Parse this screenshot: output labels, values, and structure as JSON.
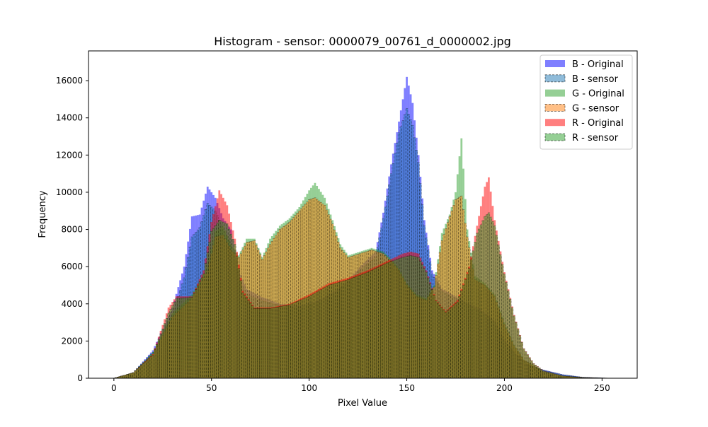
{
  "chart_data": {
    "type": "bar",
    "title": "Histogram - sensor: 0000079_00761_d_0000002.jpg",
    "xlabel": "Pixel Value",
    "ylabel": "Frequency",
    "xlim": [
      -13,
      268
    ],
    "ylim": [
      0,
      17600
    ],
    "xticks": [
      0,
      50,
      100,
      150,
      200,
      250
    ],
    "yticks": [
      0,
      2000,
      4000,
      6000,
      8000,
      10000,
      12000,
      14000,
      16000
    ],
    "grid": false,
    "legend_position": "top-right",
    "series": [
      {
        "name": "B - Original",
        "channel": "B",
        "variant": "original",
        "color": "#0000ff",
        "opacity": 0.5,
        "dashed": false,
        "peaks": [
          [
            0,
            0
          ],
          [
            10,
            300
          ],
          [
            20,
            1500
          ],
          [
            30,
            3800
          ],
          [
            36,
            6000
          ],
          [
            40,
            8700
          ],
          [
            44,
            8800
          ],
          [
            48,
            10300
          ],
          [
            52,
            9700
          ],
          [
            56,
            8600
          ],
          [
            60,
            8000
          ],
          [
            64,
            5800
          ],
          [
            68,
            4800
          ],
          [
            75,
            4400
          ],
          [
            85,
            4000
          ],
          [
            95,
            3900
          ],
          [
            105,
            4200
          ],
          [
            115,
            4800
          ],
          [
            122,
            5500
          ],
          [
            128,
            6200
          ],
          [
            134,
            6800
          ],
          [
            138,
            8900
          ],
          [
            142,
            11500
          ],
          [
            146,
            13800
          ],
          [
            150,
            16200
          ],
          [
            153,
            14800
          ],
          [
            156,
            12000
          ],
          [
            159,
            8500
          ],
          [
            163,
            5800
          ],
          [
            168,
            4800
          ],
          [
            175,
            4400
          ],
          [
            182,
            4000
          ],
          [
            188,
            3700
          ],
          [
            195,
            3100
          ],
          [
            200,
            2100
          ],
          [
            206,
            1300
          ],
          [
            212,
            750
          ],
          [
            220,
            450
          ],
          [
            230,
            200
          ],
          [
            240,
            60
          ],
          [
            255,
            0
          ]
        ]
      },
      {
        "name": "B - sensor",
        "channel": "B",
        "variant": "sensor",
        "color": "#1f77b4",
        "opacity": 0.5,
        "dashed": true,
        "peaks": [
          [
            0,
            0
          ],
          [
            10,
            300
          ],
          [
            20,
            1400
          ],
          [
            30,
            3400
          ],
          [
            36,
            5400
          ],
          [
            40,
            7600
          ],
          [
            44,
            8100
          ],
          [
            48,
            9400
          ],
          [
            52,
            9000
          ],
          [
            56,
            8000
          ],
          [
            60,
            7200
          ],
          [
            64,
            5400
          ],
          [
            68,
            4500
          ],
          [
            75,
            4200
          ],
          [
            85,
            3900
          ],
          [
            95,
            3800
          ],
          [
            105,
            4100
          ],
          [
            115,
            4700
          ],
          [
            122,
            5400
          ],
          [
            128,
            6000
          ],
          [
            134,
            6500
          ],
          [
            138,
            8600
          ],
          [
            142,
            11000
          ],
          [
            146,
            13200
          ],
          [
            150,
            14500
          ],
          [
            153,
            13600
          ],
          [
            156,
            11600
          ],
          [
            159,
            8200
          ],
          [
            163,
            5600
          ],
          [
            168,
            4700
          ],
          [
            175,
            4300
          ],
          [
            182,
            3900
          ],
          [
            188,
            3600
          ],
          [
            195,
            3000
          ],
          [
            200,
            2000
          ],
          [
            206,
            1250
          ],
          [
            212,
            720
          ],
          [
            220,
            430
          ],
          [
            230,
            190
          ],
          [
            240,
            55
          ],
          [
            255,
            0
          ]
        ]
      },
      {
        "name": "G - Original",
        "channel": "G",
        "variant": "original",
        "color": "#2ca02c",
        "opacity": 0.5,
        "dashed": false,
        "peaks": [
          [
            0,
            0
          ],
          [
            10,
            300
          ],
          [
            20,
            1400
          ],
          [
            30,
            3500
          ],
          [
            40,
            4500
          ],
          [
            48,
            6000
          ],
          [
            52,
            7900
          ],
          [
            56,
            8200
          ],
          [
            60,
            7200
          ],
          [
            64,
            6600
          ],
          [
            68,
            7500
          ],
          [
            72,
            7500
          ],
          [
            76,
            6500
          ],
          [
            80,
            7500
          ],
          [
            85,
            8200
          ],
          [
            90,
            8600
          ],
          [
            95,
            9200
          ],
          [
            100,
            10100
          ],
          [
            103,
            10500
          ],
          [
            108,
            9700
          ],
          [
            112,
            8500
          ],
          [
            116,
            7200
          ],
          [
            120,
            6600
          ],
          [
            126,
            6800
          ],
          [
            132,
            7000
          ],
          [
            138,
            6800
          ],
          [
            142,
            6400
          ],
          [
            146,
            5900
          ],
          [
            150,
            5100
          ],
          [
            155,
            4500
          ],
          [
            160,
            4300
          ],
          [
            164,
            5000
          ],
          [
            168,
            7800
          ],
          [
            172,
            8800
          ],
          [
            175,
            10000
          ],
          [
            178,
            12900
          ],
          [
            181,
            8000
          ],
          [
            185,
            5500
          ],
          [
            190,
            5100
          ],
          [
            195,
            4500
          ],
          [
            200,
            3000
          ],
          [
            205,
            1800
          ],
          [
            210,
            1000
          ],
          [
            220,
            350
          ],
          [
            230,
            130
          ],
          [
            240,
            40
          ],
          [
            255,
            0
          ]
        ]
      },
      {
        "name": "G - sensor",
        "channel": "G",
        "variant": "sensor",
        "color": "#ff7f0e",
        "opacity": 0.5,
        "dashed": true,
        "peaks": [
          [
            0,
            0
          ],
          [
            10,
            300
          ],
          [
            20,
            1300
          ],
          [
            30,
            3300
          ],
          [
            40,
            4300
          ],
          [
            48,
            5800
          ],
          [
            52,
            7600
          ],
          [
            56,
            7700
          ],
          [
            60,
            6900
          ],
          [
            64,
            6500
          ],
          [
            68,
            7300
          ],
          [
            72,
            7400
          ],
          [
            76,
            6400
          ],
          [
            80,
            7200
          ],
          [
            85,
            8000
          ],
          [
            90,
            8400
          ],
          [
            95,
            9000
          ],
          [
            100,
            9600
          ],
          [
            103,
            9700
          ],
          [
            108,
            9300
          ],
          [
            112,
            8300
          ],
          [
            116,
            7000
          ],
          [
            120,
            6500
          ],
          [
            126,
            6700
          ],
          [
            132,
            6900
          ],
          [
            138,
            6700
          ],
          [
            142,
            6300
          ],
          [
            146,
            5800
          ],
          [
            150,
            5000
          ],
          [
            155,
            4400
          ],
          [
            160,
            4200
          ],
          [
            164,
            4900
          ],
          [
            168,
            7400
          ],
          [
            172,
            8700
          ],
          [
            175,
            9600
          ],
          [
            178,
            9800
          ],
          [
            181,
            7600
          ],
          [
            185,
            5300
          ],
          [
            190,
            5000
          ],
          [
            195,
            4400
          ],
          [
            200,
            2900
          ],
          [
            205,
            1750
          ],
          [
            210,
            980
          ],
          [
            220,
            340
          ],
          [
            230,
            120
          ],
          [
            240,
            35
          ],
          [
            255,
            0
          ]
        ]
      },
      {
        "name": "R - Original",
        "channel": "R",
        "variant": "original",
        "color": "#ff0000",
        "opacity": 0.5,
        "dashed": false,
        "peaks": [
          [
            0,
            0
          ],
          [
            10,
            300
          ],
          [
            20,
            1300
          ],
          [
            28,
            3800
          ],
          [
            32,
            4400
          ],
          [
            40,
            4400
          ],
          [
            46,
            5800
          ],
          [
            50,
            8400
          ],
          [
            54,
            10100
          ],
          [
            58,
            9300
          ],
          [
            62,
            7500
          ],
          [
            66,
            4700
          ],
          [
            72,
            3800
          ],
          [
            80,
            3800
          ],
          [
            90,
            4000
          ],
          [
            100,
            4500
          ],
          [
            110,
            5100
          ],
          [
            120,
            5400
          ],
          [
            130,
            5800
          ],
          [
            140,
            6300
          ],
          [
            148,
            6700
          ],
          [
            152,
            6800
          ],
          [
            156,
            6700
          ],
          [
            160,
            5800
          ],
          [
            165,
            4200
          ],
          [
            170,
            3600
          ],
          [
            176,
            4200
          ],
          [
            182,
            6000
          ],
          [
            186,
            8200
          ],
          [
            190,
            10300
          ],
          [
            192,
            10800
          ],
          [
            195,
            8500
          ],
          [
            200,
            5700
          ],
          [
            205,
            3400
          ],
          [
            210,
            1600
          ],
          [
            215,
            800
          ],
          [
            220,
            400
          ],
          [
            230,
            130
          ],
          [
            240,
            40
          ],
          [
            255,
            0
          ]
        ]
      },
      {
        "name": "R - sensor",
        "channel": "R",
        "variant": "sensor",
        "color": "#2ca02c",
        "opacity": 0.5,
        "dashed": true,
        "peaks": [
          [
            0,
            0
          ],
          [
            10,
            300
          ],
          [
            20,
            1250
          ],
          [
            28,
            3500
          ],
          [
            32,
            4300
          ],
          [
            40,
            4350
          ],
          [
            46,
            5600
          ],
          [
            50,
            7900
          ],
          [
            54,
            8500
          ],
          [
            58,
            8300
          ],
          [
            62,
            7200
          ],
          [
            66,
            4600
          ],
          [
            72,
            3750
          ],
          [
            80,
            3750
          ],
          [
            90,
            3950
          ],
          [
            100,
            4400
          ],
          [
            110,
            5000
          ],
          [
            120,
            5300
          ],
          [
            130,
            5700
          ],
          [
            140,
            6200
          ],
          [
            148,
            6500
          ],
          [
            152,
            6600
          ],
          [
            156,
            6500
          ],
          [
            160,
            5700
          ],
          [
            165,
            4150
          ],
          [
            170,
            3550
          ],
          [
            176,
            4100
          ],
          [
            182,
            5900
          ],
          [
            186,
            7800
          ],
          [
            190,
            8700
          ],
          [
            192,
            8900
          ],
          [
            195,
            8200
          ],
          [
            200,
            5600
          ],
          [
            205,
            3350
          ],
          [
            210,
            1580
          ],
          [
            215,
            780
          ],
          [
            220,
            390
          ],
          [
            230,
            125
          ],
          [
            240,
            38
          ],
          [
            255,
            0
          ]
        ]
      }
    ]
  }
}
